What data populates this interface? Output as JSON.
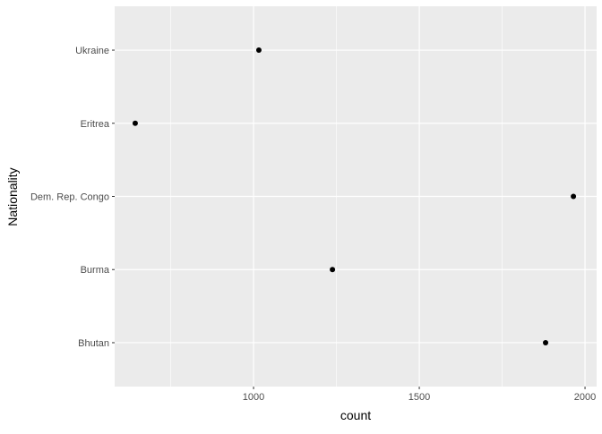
{
  "chart_data": {
    "type": "scatter",
    "title": "",
    "xlabel": "count",
    "ylabel": "Nationality",
    "xlim": [
      581,
      2035
    ],
    "x_ticks": [
      1000,
      1500,
      2000
    ],
    "x_minor_ticks": [
      750,
      1250,
      1750
    ],
    "x_tick_labels": [
      "1000",
      "1500",
      "2000"
    ],
    "categories": [
      "Bhutan",
      "Burma",
      "Dem. Rep. Congo",
      "Eritrea",
      "Ukraine"
    ],
    "values": [
      1881,
      1238,
      1965,
      643,
      1016
    ],
    "grid": true,
    "colors": {
      "panel": "#EBEBEB",
      "grid": "#FFFFFF",
      "point": "#000000",
      "tick_text": "#4D4D4D"
    }
  }
}
